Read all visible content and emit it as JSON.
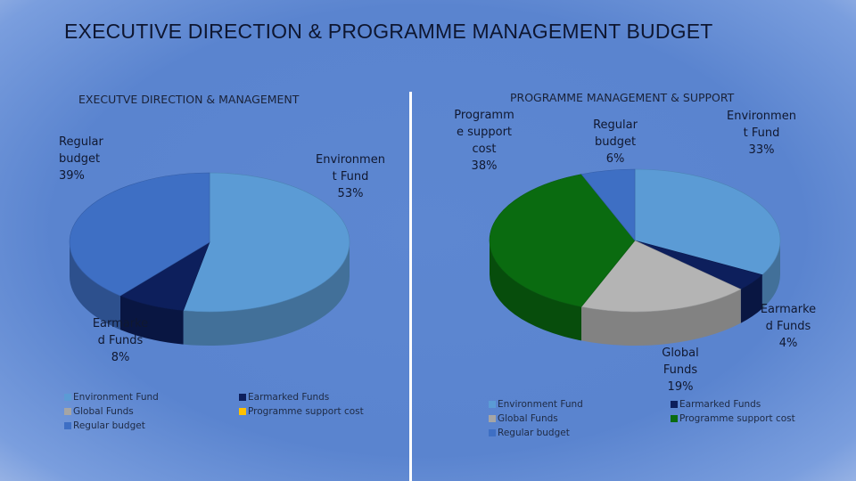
{
  "page": {
    "title": "EXECUTIVE DIRECTION & PROGRAMME MANAGEMENT BUDGET"
  },
  "chart_data": [
    {
      "type": "pie",
      "title": "EXECUTVE DIRECTION & MANAGEMENT",
      "slices": [
        {
          "name": "Environment Fund",
          "value": 53,
          "label": "Environmen\nt Fund\n53%",
          "color": "#5b9bd5"
        },
        {
          "name": "Earmarked Funds",
          "value": 8,
          "label": "Earmarke\nd Funds\n8%",
          "color": "#0d1f5c"
        },
        {
          "name": "Regular budget",
          "value": 39,
          "label": "Regular\nbudget\n39%",
          "color": "#3e6fc4"
        }
      ],
      "legend": [
        {
          "label": "Environment Fund",
          "color": "#5b9bd5"
        },
        {
          "label": "Global Funds",
          "color": "#a5a5a5"
        },
        {
          "label": "Regular budget",
          "color": "#3e6fc4"
        },
        {
          "label": "Earmarked Funds",
          "color": "#0d1f5c"
        },
        {
          "label": "Programme support cost",
          "color": "#ffc000"
        }
      ]
    },
    {
      "type": "pie",
      "title": "PROGRAMME MANAGEMENT & SUPPORT",
      "slices": [
        {
          "name": "Environment Fund",
          "value": 33,
          "label": "Environmen\nt Fund\n33%",
          "color": "#5b9bd5"
        },
        {
          "name": "Earmarked Funds",
          "value": 4,
          "label": "Earmarke\nd Funds\n4%",
          "color": "#0d1f5c"
        },
        {
          "name": "Global Funds",
          "value": 19,
          "label": "Global\nFunds\n19%",
          "color": "#b4b4b4"
        },
        {
          "name": "Programme support cost",
          "value": 38,
          "label": "Programm\ne support\ncost\n38%",
          "color": "#0a6b10"
        },
        {
          "name": "Regular budget",
          "value": 6,
          "label": "Regular\nbudget\n6%",
          "color": "#3e6fc4"
        }
      ],
      "legend": [
        {
          "label": "Environment Fund",
          "color": "#5b9bd5"
        },
        {
          "label": "Global Funds",
          "color": "#a5a5a5"
        },
        {
          "label": "Regular budget",
          "color": "#3e6fc4"
        },
        {
          "label": "Earmarked Funds",
          "color": "#0d1f5c"
        },
        {
          "label": "Programme support cost",
          "color": "#0a6b10"
        }
      ]
    }
  ]
}
